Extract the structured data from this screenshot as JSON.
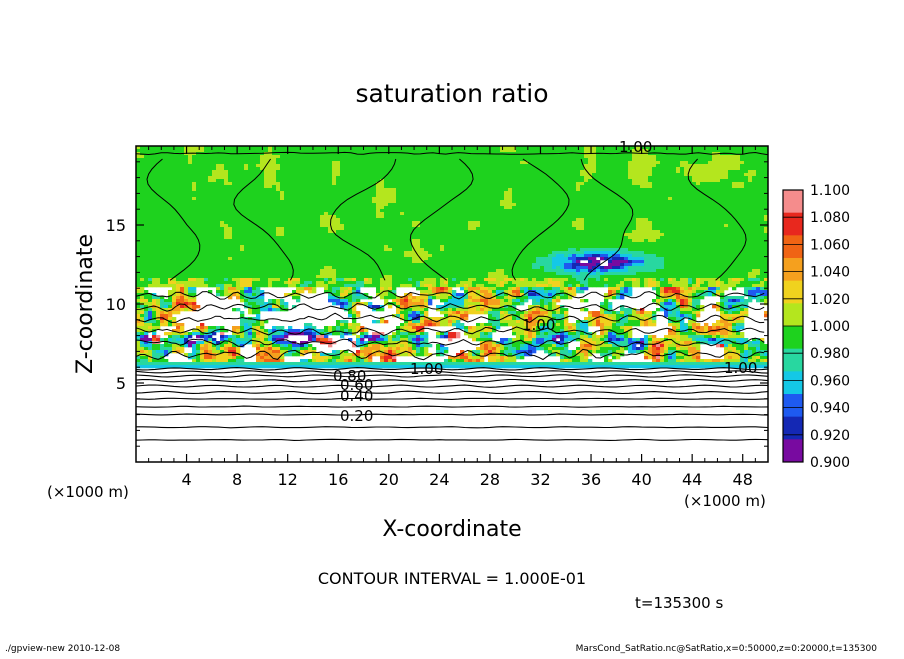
{
  "chart_data": {
    "type": "heatmap",
    "title": "saturation ratio",
    "xlabel": "X-coordinate",
    "ylabel": "Z-coordinate",
    "x_unit": "(×1000 m)",
    "y_unit": "(×1000 m)",
    "xlim": [
      0,
      50
    ],
    "ylim": [
      0,
      20
    ],
    "x_ticks": [
      4,
      8,
      12,
      16,
      20,
      24,
      28,
      32,
      36,
      40,
      44,
      48
    ],
    "y_ticks": [
      5,
      10,
      15
    ],
    "contour_labels": [
      "1.00",
      "0.80",
      "0.60",
      "0.40",
      "0.20"
    ],
    "contour_interval_text": "CONTOUR INTERVAL = 1.000E-01",
    "time_text": "t=135300 s",
    "colorbar": {
      "ticks": [
        "1.100",
        "1.080",
        "1.060",
        "1.040",
        "1.020",
        "1.000",
        "0.980",
        "0.960",
        "0.940",
        "0.920",
        "0.900"
      ],
      "colors": [
        "#f58c8c",
        "#e8281e",
        "#f06414",
        "#f5a01e",
        "#f0d21e",
        "#b4e61e",
        "#1ed21e",
        "#28d7a0",
        "#14c8e6",
        "#1e5af0",
        "#1428b4",
        "#780aa0"
      ]
    },
    "layers": {
      "upper_saturated_value": 1.0,
      "mixed_layer_z": [
        6,
        11
      ],
      "subsaturated_below_z": 6
    }
  },
  "footer": {
    "left": "./gpview-new   2010-12-08",
    "right": "MarsCond_SatRatio.nc@SatRatio,x=0:50000,z=0:20000,t=135300"
  }
}
